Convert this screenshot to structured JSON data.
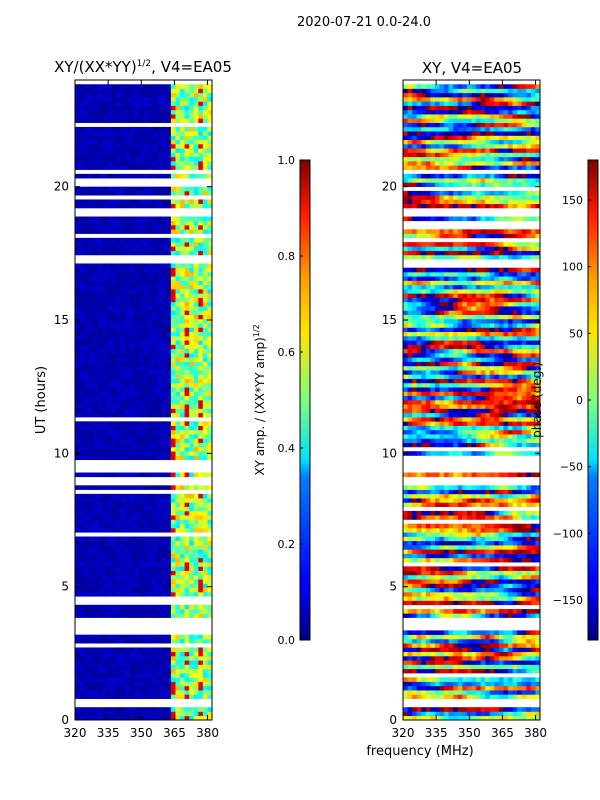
{
  "suptitle": "2020-07-21 0.0-24.0",
  "xlabel_shared": "frequency (MHz)",
  "chart_data": [
    {
      "type": "heatmap",
      "title_base": "XY/(XX*YY)",
      "title_exp": "1/2",
      "title_suffix": ", V4=EA05",
      "ylabel": "UT (hours)",
      "xlim": [
        320,
        382
      ],
      "ylim": [
        0,
        24
      ],
      "xticks": [
        "320",
        "335",
        "350",
        "365",
        "380"
      ],
      "xtick_values": [
        320,
        335,
        350,
        365,
        380
      ],
      "yticks": [
        "0",
        "5",
        "10",
        "15",
        "20"
      ],
      "ytick_values": [
        0,
        5,
        10,
        15,
        20
      ],
      "colorbar": {
        "label_base": "XY amp. / (XX*YY amp)",
        "label_exp": "1/2",
        "ticks": [
          "0.0",
          "0.2",
          "0.4",
          "0.6",
          "0.8",
          "1.0"
        ],
        "tick_values": [
          0.0,
          0.2,
          0.4,
          0.6,
          0.8,
          1.0
        ],
        "range": [
          0.0,
          1.0
        ]
      },
      "data_gaps_hours": [
        [
          0.5,
          0.8
        ],
        [
          3.2,
          3.9
        ],
        [
          8.8,
          9.1
        ],
        [
          9.3,
          9.7
        ],
        [
          11.2,
          11.4
        ],
        [
          17.1,
          17.4
        ],
        [
          18.9,
          19.2
        ]
      ],
      "high_amplitude_band_mhz": [
        363,
        381
      ]
    },
    {
      "type": "heatmap",
      "title": "XY, V4=EA05",
      "xlim": [
        320,
        382
      ],
      "ylim": [
        0,
        24
      ],
      "xticks": [
        "320",
        "335",
        "350",
        "365",
        "380"
      ],
      "xtick_values": [
        320,
        335,
        350,
        365,
        380
      ],
      "yticks": [
        "0",
        "5",
        "10",
        "15",
        "20"
      ],
      "ytick_values": [
        0,
        5,
        10,
        15,
        20
      ],
      "colorbar": {
        "label": "phase (deg.)",
        "ticks": [
          "−150",
          "−100",
          "−50",
          "0",
          "50",
          "100",
          "150"
        ],
        "tick_values": [
          -150,
          -100,
          -50,
          0,
          50,
          100,
          150
        ],
        "range": [
          -180,
          180
        ]
      },
      "data_gaps_hours": [
        [
          0.5,
          0.8
        ],
        [
          3.3,
          3.9
        ],
        [
          8.8,
          9.1
        ],
        [
          9.3,
          9.7
        ],
        [
          18.9,
          19.2
        ]
      ]
    }
  ]
}
